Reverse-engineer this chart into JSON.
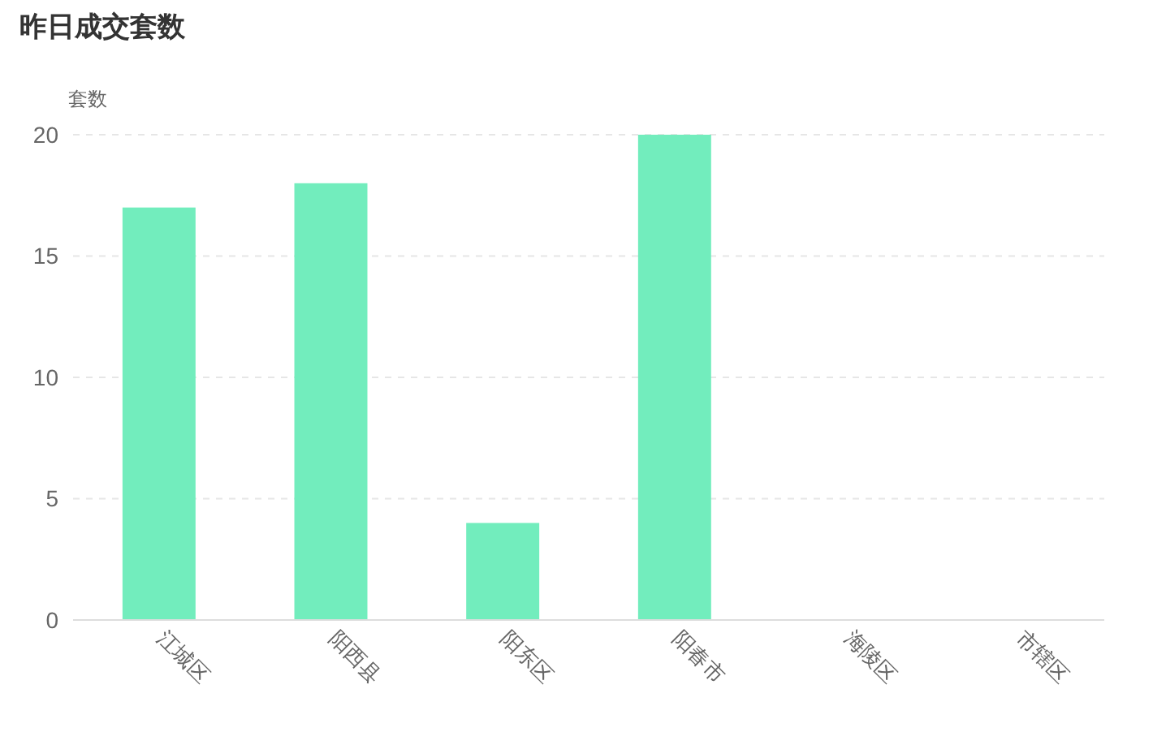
{
  "chart_data": {
    "type": "bar",
    "title": "昨日成交套数",
    "ylabel": "套数",
    "categories": [
      "江城区",
      "阳西县",
      "阳东区",
      "阳春市",
      "海陵区",
      "市辖区"
    ],
    "values": [
      17,
      18,
      4,
      20,
      0,
      0
    ],
    "color": "#72edbd",
    "ylim": [
      0,
      20
    ],
    "yticks": [
      0,
      5,
      10,
      15,
      20
    ],
    "grid": "y"
  }
}
